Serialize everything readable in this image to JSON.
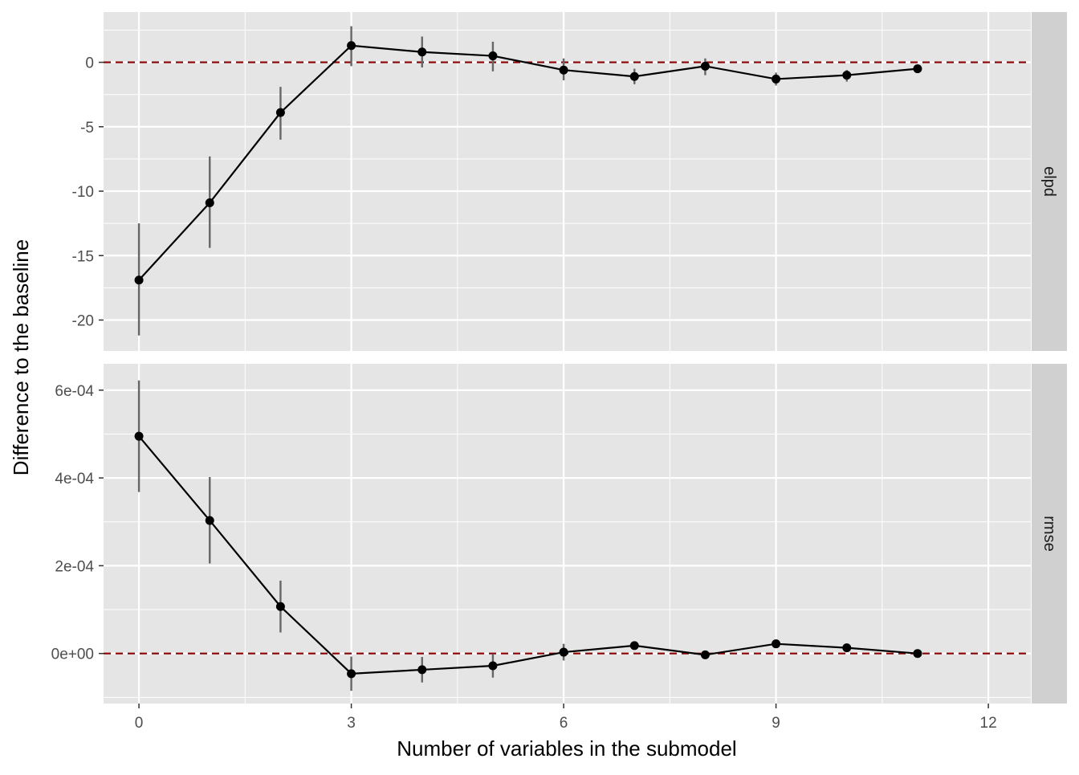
{
  "chart_data": {
    "type": "line",
    "xlabel": "Number of variables in the submodel",
    "ylabel": "Difference to the baseline",
    "x": [
      0,
      1,
      2,
      3,
      4,
      5,
      6,
      7,
      8,
      9,
      10,
      11
    ],
    "xlim": [
      -0.5,
      12.6
    ],
    "x_ticks": [
      0,
      3,
      6,
      9,
      12
    ],
    "x_tick_labels": [
      "0",
      "3",
      "6",
      "9",
      "12"
    ],
    "grid": true,
    "reference_line": {
      "y": 0,
      "style": "dashed",
      "color": "#8b0000"
    },
    "colors": {
      "panel_background": "#e5e5e5",
      "grid": "#ffffff",
      "strip_background": "#d0d0d0",
      "line": "#000000",
      "error_bar": "#666666",
      "axis_text": "#4d4d4d"
    },
    "panels": [
      {
        "strip_label": "elpd",
        "ylim": [
          -22.4,
          3.9
        ],
        "y_ticks": [
          0,
          -5,
          -10,
          -15,
          -20
        ],
        "y_tick_labels": [
          "0",
          "-5",
          "-10",
          "-15",
          "-20"
        ],
        "y_minor_ticks": [
          2.5,
          -2.5,
          -7.5,
          -12.5,
          -17.5
        ],
        "values": [
          -16.9,
          -10.9,
          -3.9,
          1.3,
          0.8,
          0.5,
          -0.6,
          -1.1,
          -0.3,
          -1.3,
          -1.0,
          -0.5
        ],
        "lower": [
          -21.2,
          -14.4,
          -6.0,
          -0.3,
          -0.4,
          -0.7,
          -1.4,
          -1.7,
          -1.0,
          -1.8,
          -1.5,
          -0.7
        ],
        "upper": [
          -12.5,
          -7.3,
          -1.9,
          2.8,
          2.0,
          1.6,
          0.3,
          -0.5,
          0.3,
          -0.8,
          -0.6,
          -0.3
        ]
      },
      {
        "strip_label": "rmse",
        "ylim": [
          -0.000114,
          0.00066
        ],
        "y_ticks": [
          0,
          0.0002,
          0.0004,
          0.0006
        ],
        "y_tick_labels": [
          "0e+00",
          "2e-04",
          "4e-04",
          "6e-04"
        ],
        "y_minor_ticks": [
          -0.0001,
          0.0001,
          0.0003,
          0.0005
        ],
        "values": [
          0.000495,
          0.000303,
          0.000107,
          -4.6e-05,
          -3.7e-05,
          -2.8e-05,
          3e-06,
          1.8e-05,
          -3e-06,
          2.2e-05,
          1.3e-05,
          0.0
        ],
        "lower": [
          0.000368,
          0.000205,
          4.8e-05,
          -8.5e-05,
          -6.6e-05,
          -5.5e-05,
          -1.6e-05,
          1e-05,
          -7e-06,
          1.4e-05,
          8e-06,
          -2e-06
        ],
        "upper": [
          0.000622,
          0.000402,
          0.000166,
          -7e-06,
          -8e-06,
          -1e-06,
          2.2e-05,
          2.6e-05,
          1e-06,
          3e-05,
          1.8e-05,
          2e-06
        ]
      }
    ]
  }
}
